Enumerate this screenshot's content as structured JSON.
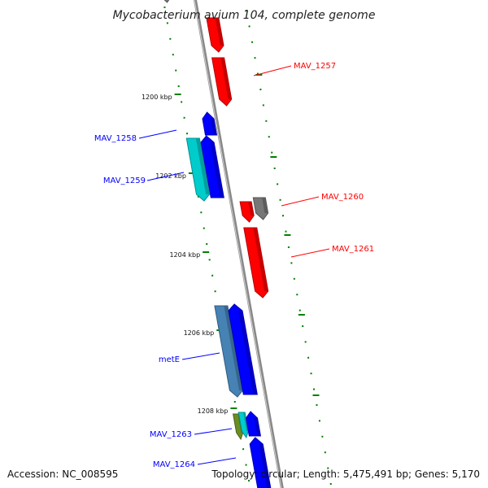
{
  "title": "Mycobacterium avium 104, complete genome",
  "footer": {
    "accession": "Accession: NC_008595",
    "summary": "Topology: circular; Length: 5,475,491 bp; Genes: 5,170"
  },
  "colors": {
    "forward": "#ff0000",
    "reverse": "#0000ff",
    "other": "#777777",
    "reverse_light": "#00cccc",
    "reverse_steel": "#4682b4",
    "reverse_olive": "#6b8e23",
    "tick": "#008000",
    "backbone": "#888888"
  },
  "scale_labels": [
    {
      "name": "1200 kbp",
      "text": "1200 kbp"
    },
    {
      "name": "1202 kbp",
      "text": "1202 kbp"
    },
    {
      "name": "1204 kbp",
      "text": "1204 kbp"
    },
    {
      "name": "1206 kbp",
      "text": "1206 kbp"
    },
    {
      "name": "1208 kbp",
      "text": "1208 kbp"
    }
  ],
  "genes": [
    {
      "name": "MAV_1257",
      "label": "MAV_1257",
      "strand": "forward"
    },
    {
      "name": "MAV_1258",
      "label": "MAV_1258",
      "strand": "reverse"
    },
    {
      "name": "MAV_1259",
      "label": "MAV_1259",
      "strand": "reverse"
    },
    {
      "name": "MAV_1260",
      "label": "MAV_1260",
      "strand": "forward"
    },
    {
      "name": "MAV_1261",
      "label": "MAV_1261",
      "strand": "forward"
    },
    {
      "name": "metE",
      "label": "metE",
      "strand": "reverse"
    },
    {
      "name": "MAV_1263",
      "label": "MAV_1263",
      "strand": "reverse"
    },
    {
      "name": "MAV_1264",
      "label": "MAV_1264",
      "strand": "reverse"
    }
  ]
}
